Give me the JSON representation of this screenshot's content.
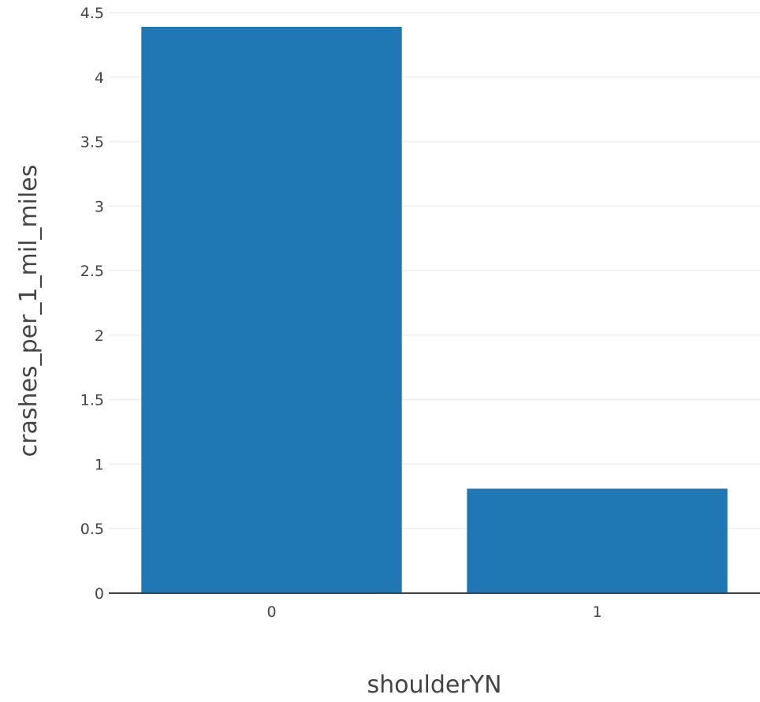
{
  "chart_data": {
    "type": "bar",
    "categories": [
      "0",
      "1"
    ],
    "values": [
      4.39,
      0.81
    ],
    "xlabel": "shoulderYN",
    "ylabel": "crashes_per_1_mil_miles",
    "ylim": [
      0,
      4.5
    ],
    "yticks": [
      0,
      0.5,
      1,
      1.5,
      2,
      2.5,
      3,
      3.5,
      4,
      4.5
    ],
    "ytick_labels": [
      "0",
      "0.5",
      "1",
      "1.5",
      "2",
      "2.5",
      "3",
      "3.5",
      "4",
      "4.5"
    ],
    "grid": true,
    "legend": "none",
    "bar_color": "#1f77b4"
  }
}
